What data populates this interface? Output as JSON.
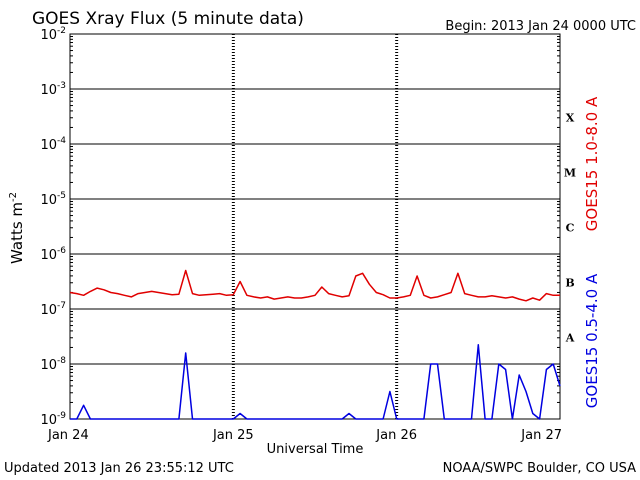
{
  "chart_data": {
    "type": "line",
    "title": "GOES Xray Flux (5 minute data)",
    "begin_label": "Begin:  2013 Jan 24 0000 UTC",
    "ylabel_base": "Watts m",
    "ylabel_exp": "-2",
    "xlabel": "Universal Time",
    "yscale": "log",
    "ylim_exponents": [
      -9,
      -2
    ],
    "y_ticks": [
      {
        "base": "10",
        "exp": "-2"
      },
      {
        "base": "10",
        "exp": "-3"
      },
      {
        "base": "10",
        "exp": "-4"
      },
      {
        "base": "10",
        "exp": "-5"
      },
      {
        "base": "10",
        "exp": "-6"
      },
      {
        "base": "10",
        "exp": "-7"
      },
      {
        "base": "10",
        "exp": "-8"
      },
      {
        "base": "10",
        "exp": "-9"
      }
    ],
    "x_ticks": [
      "Jan 24",
      "Jan 25",
      "Jan 26",
      "Jan 27"
    ],
    "xlim_hours": [
      0,
      72
    ],
    "flare_classes": [
      {
        "label": "X",
        "exponent": -3.5
      },
      {
        "label": "M",
        "exponent": -4.5
      },
      {
        "label": "C",
        "exponent": -5.5
      },
      {
        "label": "B",
        "exponent": -6.5
      },
      {
        "label": "A",
        "exponent": -7.5
      }
    ],
    "grid": true,
    "series": [
      {
        "name": "GOES15 1.0-8.0 A",
        "color": "#e00000",
        "x_hours": [
          0,
          1,
          2,
          3,
          4,
          5,
          6,
          7,
          8,
          9,
          10,
          11,
          12,
          13,
          14,
          15,
          16,
          17,
          18,
          19,
          20,
          21,
          22,
          23,
          24,
          25,
          26,
          27,
          28,
          29,
          30,
          31,
          32,
          33,
          34,
          35,
          36,
          37,
          38,
          39,
          40,
          41,
          42,
          43,
          44,
          45,
          46,
          47,
          48,
          49,
          50,
          51,
          52,
          53,
          54,
          55,
          56,
          57,
          58,
          59,
          60,
          61,
          62,
          63,
          64,
          65,
          66,
          67,
          68,
          69,
          70,
          71,
          72
        ],
        "log_values": [
          -6.7,
          -6.72,
          -6.75,
          -6.68,
          -6.62,
          -6.65,
          -6.7,
          -6.72,
          -6.75,
          -6.78,
          -6.72,
          -6.7,
          -6.68,
          -6.7,
          -6.72,
          -6.74,
          -6.73,
          -6.3,
          -6.72,
          -6.75,
          -6.74,
          -6.73,
          -6.72,
          -6.75,
          -6.74,
          -6.5,
          -6.75,
          -6.78,
          -6.8,
          -6.78,
          -6.82,
          -6.8,
          -6.78,
          -6.8,
          -6.8,
          -6.78,
          -6.75,
          -6.6,
          -6.72,
          -6.75,
          -6.78,
          -6.76,
          -6.4,
          -6.35,
          -6.55,
          -6.7,
          -6.74,
          -6.8,
          -6.8,
          -6.78,
          -6.75,
          -6.4,
          -6.75,
          -6.8,
          -6.78,
          -6.74,
          -6.7,
          -6.35,
          -6.72,
          -6.75,
          -6.78,
          -6.78,
          -6.76,
          -6.78,
          -6.8,
          -6.78,
          -6.82,
          -6.85,
          -6.8,
          -6.84,
          -6.72,
          -6.75,
          -6.75
        ]
      },
      {
        "name": "GOES15 0.5-4.0 A",
        "color": "#0000e0",
        "x_hours": [
          0,
          1,
          2,
          3,
          4,
          5,
          6,
          7,
          8,
          9,
          10,
          11,
          12,
          13,
          14,
          15,
          16,
          17,
          18,
          19,
          20,
          21,
          22,
          23,
          24,
          25,
          26,
          27,
          28,
          29,
          30,
          31,
          32,
          33,
          34,
          35,
          36,
          37,
          38,
          39,
          40,
          41,
          42,
          43,
          44,
          45,
          46,
          47,
          48,
          49,
          50,
          51,
          52,
          53,
          54,
          55,
          56,
          57,
          58,
          59,
          60,
          61,
          62,
          63,
          64,
          65,
          66,
          67,
          68,
          69,
          70,
          71,
          72
        ],
        "log_values": [
          -9.1,
          -9.1,
          -8.75,
          -9.1,
          -9.1,
          -9.1,
          -9.1,
          -9.1,
          -9.1,
          -9.1,
          -9.1,
          -9.1,
          -9.1,
          -9.1,
          -9.1,
          -9.1,
          -9.1,
          -7.8,
          -9.1,
          -9.1,
          -9.1,
          -9.1,
          -9.1,
          -9.1,
          -9.1,
          -8.9,
          -9.1,
          -9.1,
          -9.1,
          -9.1,
          -9.1,
          -9.1,
          -9.1,
          -9.1,
          -9.1,
          -9.1,
          -9.1,
          -9.1,
          -9.1,
          -9.1,
          -9.1,
          -8.9,
          -9.1,
          -9.1,
          -9.1,
          -9.1,
          -9.1,
          -8.5,
          -9.1,
          -9.1,
          -9.1,
          -9.1,
          -9.1,
          -8.0,
          -8.0,
          -9.1,
          -9.1,
          -9.1,
          -9.1,
          -9.1,
          -7.65,
          -9.1,
          -9.1,
          -8.0,
          -8.1,
          -9.0,
          -8.2,
          -8.5,
          -8.9,
          -9.1,
          -8.1,
          -8.0,
          -8.4
        ]
      }
    ]
  },
  "footer": {
    "updated": "Updated 2013 Jan 26 23:55:12 UTC",
    "source": "NOAA/SWPC Boulder, CO USA"
  }
}
